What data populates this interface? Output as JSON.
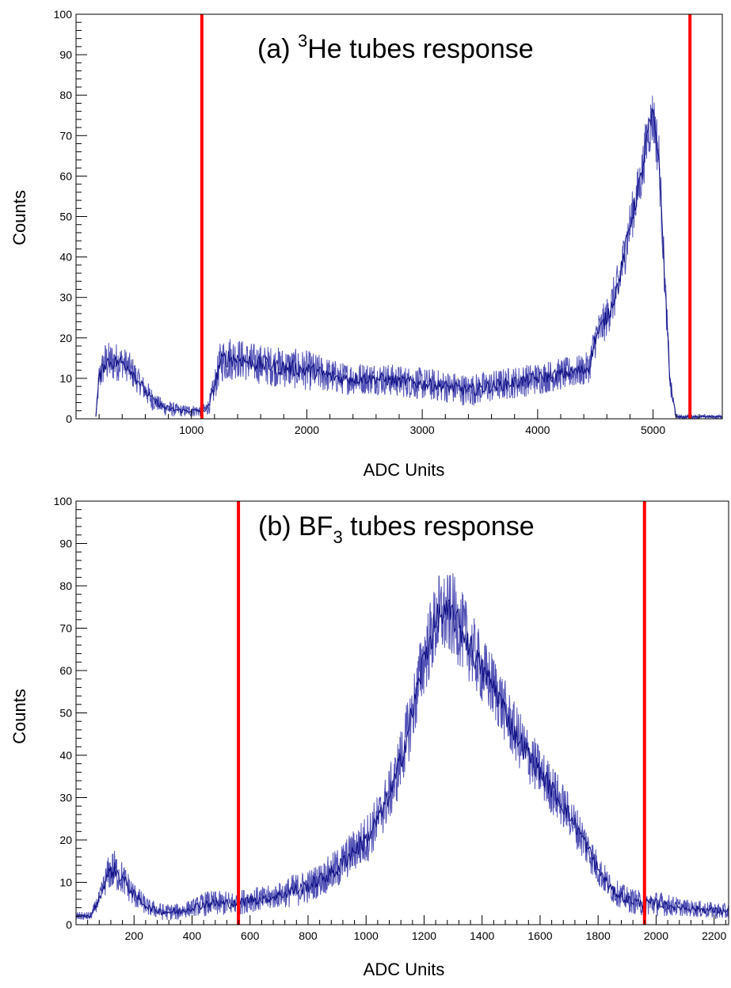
{
  "colors": {
    "trace": "#1a1a9e",
    "cut": "#ff0000",
    "axis": "#000000"
  },
  "chart_data": [
    {
      "type": "line",
      "title": "(a) ",
      "title_sup": "3",
      "title_rest": "He tubes response",
      "xlabel": "ADC Units",
      "ylabel": "Counts",
      "xlim": [
        0,
        5600
      ],
      "ylim": [
        0,
        100
      ],
      "xticks": [
        1000,
        2000,
        3000,
        4000,
        5000
      ],
      "xtick_labels": [
        "1000",
        "2000",
        "3000",
        "4000",
        "5000"
      ],
      "yticks": [
        0,
        10,
        20,
        30,
        40,
        50,
        60,
        70,
        80,
        90,
        100
      ],
      "ytick_labels": [
        "0",
        "10",
        "20",
        "30",
        "40",
        "50",
        "60",
        "70",
        "80",
        "90",
        "100"
      ],
      "grid": false,
      "series": [
        {
          "x": [
            170,
            200,
            250,
            300,
            350,
            400,
            450,
            500,
            550,
            600,
            650,
            700,
            750,
            800,
            900,
            1000,
            1100,
            1150,
            1200,
            1250,
            1300,
            1400,
            1500,
            1700,
            2000,
            2300,
            2600,
            2900,
            3200,
            3400,
            3600,
            3800,
            4000,
            4200,
            4400,
            4450,
            4500,
            4600,
            4700,
            4800,
            4900,
            4950,
            5000,
            5050,
            5100,
            5150,
            5200,
            5300,
            5400,
            5500,
            5600
          ],
          "y": [
            0,
            10,
            14,
            14,
            14,
            14,
            13,
            11,
            9,
            7,
            5,
            4,
            3,
            2.5,
            2,
            2,
            2,
            3,
            8,
            14,
            15,
            15,
            14,
            13,
            12,
            10,
            10,
            9,
            8,
            7,
            8,
            9,
            10,
            11,
            12,
            13,
            20,
            25,
            33,
            48,
            60,
            70,
            75,
            65,
            35,
            8,
            0.5,
            0.5,
            0.5,
            0.5,
            0.5
          ],
          "noise": [
            0,
            4,
            5,
            5,
            5,
            4,
            4,
            4,
            3,
            3,
            3,
            2,
            2,
            2,
            1.5,
            1.5,
            1.5,
            2,
            4,
            5,
            6,
            5,
            5,
            5,
            5,
            4,
            4,
            4,
            4,
            4,
            4,
            4,
            4,
            4,
            4,
            4,
            5,
            5,
            6,
            6,
            6,
            7,
            7,
            7,
            5,
            3,
            0.5,
            0.5,
            0.5,
            0.5,
            0.5
          ]
        }
      ],
      "cut_lines": [
        1090,
        5320
      ]
    },
    {
      "type": "line",
      "title": "(b) BF",
      "title_sub": "3",
      "title_rest": " tubes response",
      "xlabel": "ADC Units",
      "ylabel": "Counts",
      "xlim": [
        0,
        2250
      ],
      "ylim": [
        0,
        100
      ],
      "xticks": [
        200,
        400,
        600,
        800,
        1000,
        1200,
        1400,
        1600,
        1800,
        2000,
        2200
      ],
      "xtick_labels": [
        "200",
        "400",
        "600",
        "800",
        "1000",
        "1200",
        "1400",
        "1600",
        "1800",
        "2000",
        "2200"
      ],
      "yticks": [
        0,
        10,
        20,
        30,
        40,
        50,
        60,
        70,
        80,
        90,
        100
      ],
      "ytick_labels": [
        "0",
        "10",
        "20",
        "30",
        "40",
        "50",
        "60",
        "70",
        "80",
        "90",
        "100"
      ],
      "grid": false,
      "series": [
        {
          "x": [
            0,
            50,
            80,
            110,
            130,
            160,
            200,
            250,
            300,
            350,
            400,
            450,
            500,
            550,
            600,
            650,
            700,
            750,
            800,
            850,
            900,
            950,
            1000,
            1050,
            1100,
            1150,
            1200,
            1250,
            1300,
            1350,
            1400,
            1450,
            1500,
            1550,
            1600,
            1650,
            1700,
            1750,
            1800,
            1850,
            1900,
            1950,
            2000,
            2100,
            2250
          ],
          "y": [
            2,
            2,
            6,
            12,
            13,
            11,
            7,
            4,
            3,
            3,
            4,
            5,
            5,
            5,
            6,
            6,
            7,
            8,
            9,
            11,
            13,
            17,
            20,
            26,
            34,
            47,
            63,
            73,
            73,
            67,
            60,
            55,
            47,
            41,
            36,
            31,
            26,
            20,
            13,
            8,
            6,
            5,
            5,
            4,
            3
          ],
          "noise": [
            1,
            1,
            2,
            4,
            5,
            4,
            3,
            2,
            2,
            2,
            2,
            3,
            3,
            3,
            3,
            3,
            3,
            4,
            4,
            4,
            5,
            5,
            6,
            6,
            7,
            8,
            9,
            10,
            10,
            9,
            8,
            8,
            7,
            7,
            6,
            6,
            5,
            5,
            4,
            3,
            3,
            3,
            3,
            2,
            2
          ]
        }
      ],
      "cut_lines": [
        560,
        1960
      ]
    }
  ]
}
